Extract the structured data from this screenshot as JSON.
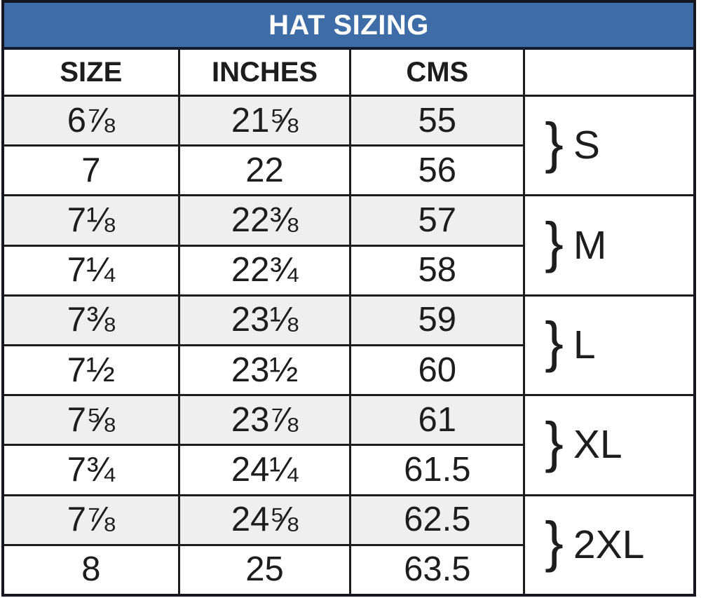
{
  "header": {
    "title": "HAT SIZING"
  },
  "table": {
    "columns": [
      "SIZE",
      "INCHES",
      "CMS",
      ""
    ],
    "rows": [
      {
        "size": "6⅞",
        "inches": "21⅝",
        "cms": "55"
      },
      {
        "size": "7",
        "inches": "22",
        "cms": "56"
      },
      {
        "size": "7⅛",
        "inches": "22⅜",
        "cms": "57"
      },
      {
        "size": "7¼",
        "inches": "22¾",
        "cms": "58"
      },
      {
        "size": "7⅜",
        "inches": "23⅛",
        "cms": "59"
      },
      {
        "size": "7½",
        "inches": "23½",
        "cms": "60"
      },
      {
        "size": "7⅝",
        "inches": "23⅞",
        "cms": "61"
      },
      {
        "size": "7¾",
        "inches": "24¼",
        "cms": "61.5"
      },
      {
        "size": "7⅞",
        "inches": "24⅝",
        "cms": "62.5"
      },
      {
        "size": "8",
        "inches": "25",
        "cms": "63.5"
      }
    ],
    "brace_char": "}",
    "groups": [
      {
        "label": "S"
      },
      {
        "label": "M"
      },
      {
        "label": "L"
      },
      {
        "label": "XL"
      },
      {
        "label": "2XL"
      }
    ]
  },
  "colors": {
    "title_bg": "#3e6ca7",
    "title_text": "#ffffff",
    "shaded_row": "#efefef",
    "plain_row": "#ffffff",
    "border": "#1c1c1c"
  },
  "chart_data": {
    "type": "table",
    "title": "HAT SIZING",
    "columns": [
      "SIZE",
      "INCHES",
      "CMS",
      ""
    ],
    "rows": [
      [
        "6⅞",
        "21⅝",
        "55",
        "S"
      ],
      [
        "7",
        "22",
        "56",
        "S"
      ],
      [
        "7⅛",
        "22⅜",
        "57",
        "M"
      ],
      [
        "7¼",
        "22¾",
        "58",
        "M"
      ],
      [
        "7⅜",
        "23⅛",
        "59",
        "L"
      ],
      [
        "7½",
        "23½",
        "60",
        "L"
      ],
      [
        "7⅝",
        "23⅞",
        "61",
        "XL"
      ],
      [
        "7¾",
        "24¼",
        "61.5",
        "XL"
      ],
      [
        "7⅞",
        "24⅝",
        "62.5",
        "2XL"
      ],
      [
        "8",
        "25",
        "63.5",
        "2XL"
      ]
    ],
    "groups": [
      {
        "label": "S",
        "rows": [
          1,
          2
        ]
      },
      {
        "label": "M",
        "rows": [
          3,
          4
        ]
      },
      {
        "label": "L",
        "rows": [
          5,
          6
        ]
      },
      {
        "label": "XL",
        "rows": [
          7,
          8
        ]
      },
      {
        "label": "2XL",
        "rows": [
          9,
          10
        ]
      }
    ],
    "layout": {
      "shaded_rows": [
        1,
        3,
        5,
        7,
        9
      ],
      "grid": "on"
    }
  }
}
